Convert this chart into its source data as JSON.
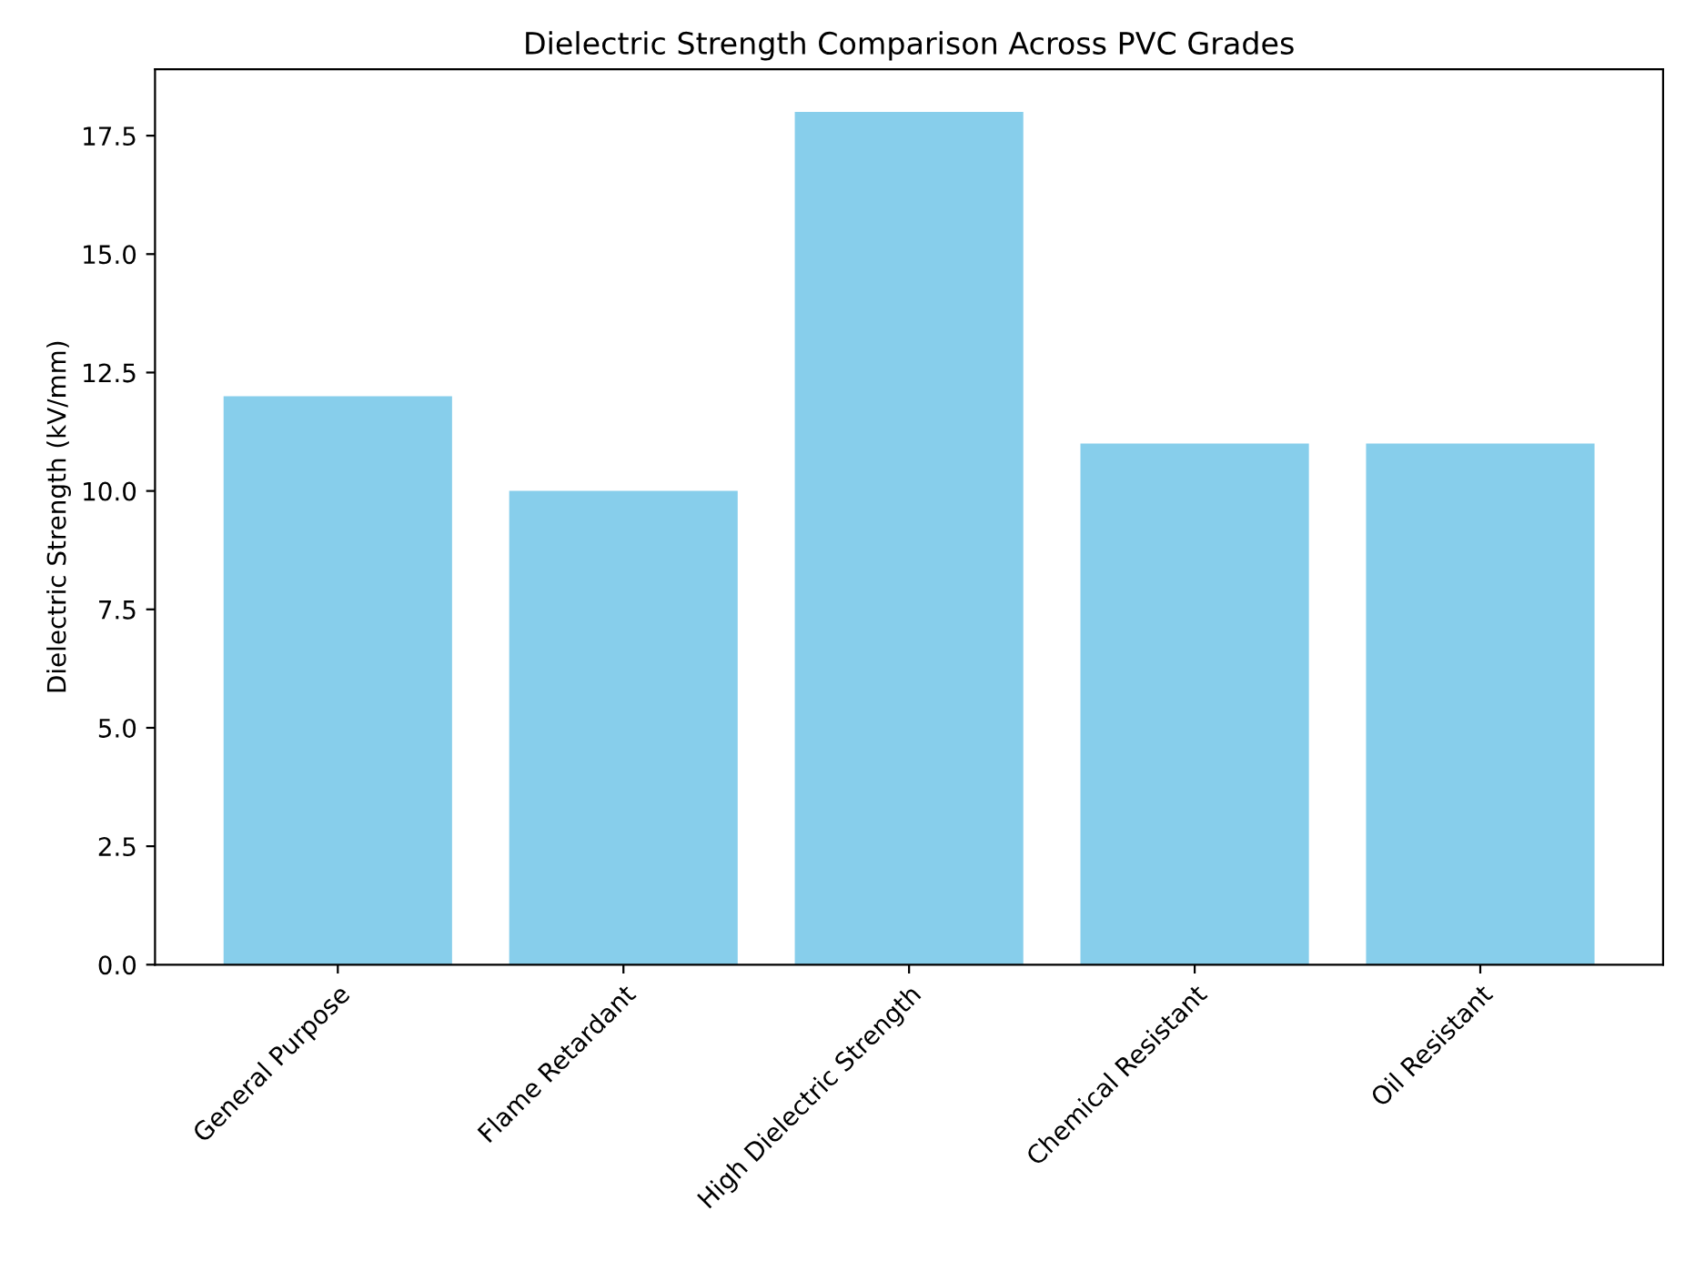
{
  "chart_data": {
    "type": "bar",
    "title": "Dielectric Strength Comparison Across PVC Grades",
    "ylabel": "Dielectric Strength (kV/mm)",
    "categories": [
      "General Purpose",
      "Flame Retardant",
      "High Dielectric Strength",
      "Chemical Resistant",
      "Oil Resistant"
    ],
    "values": [
      12,
      10,
      18,
      11,
      11
    ],
    "color": "#87ceeb",
    "ylim": [
      0,
      18.9
    ],
    "yticks": [
      {
        "value": 0,
        "label": "0.0"
      },
      {
        "value": 2.5,
        "label": "2.5"
      },
      {
        "value": 5,
        "label": "5.0"
      },
      {
        "value": 7.5,
        "label": "7.5"
      },
      {
        "value": 10,
        "label": "10.0"
      },
      {
        "value": 12.5,
        "label": "12.5"
      },
      {
        "value": 15,
        "label": "15.0"
      },
      {
        "value": 17.5,
        "label": "17.5"
      }
    ],
    "grid": false
  }
}
